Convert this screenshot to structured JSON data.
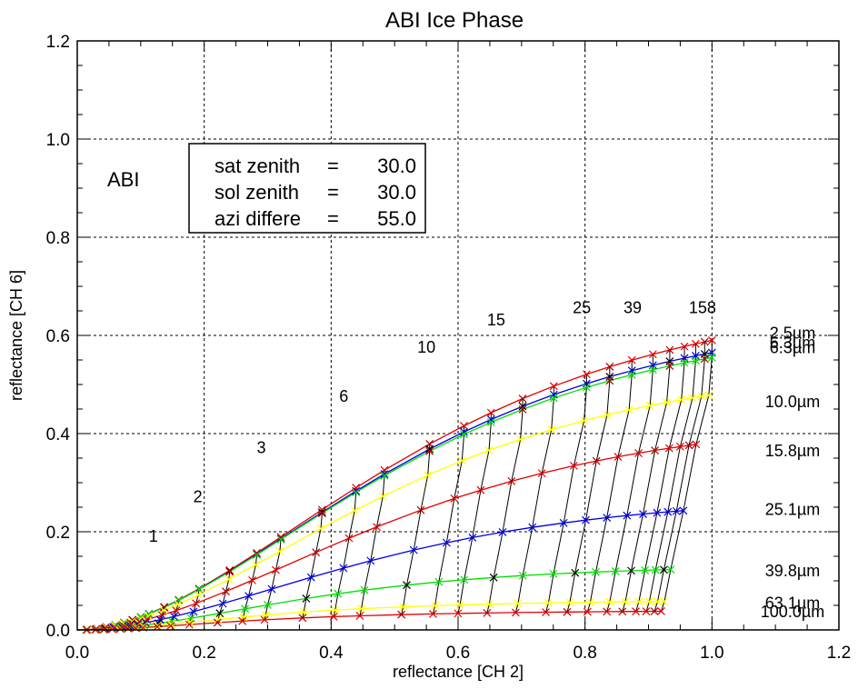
{
  "chart_data": {
    "type": "line",
    "title": "ABI Ice Phase",
    "xlabel": "reflectance [CH 2]",
    "ylabel": "reflectance [CH 6]",
    "xlim": [
      0.0,
      1.2
    ],
    "ylim": [
      0.0,
      1.2
    ],
    "x_ticks": [
      "0.0",
      "0.2",
      "0.4",
      "0.6",
      "0.8",
      "1.0",
      "1.2"
    ],
    "y_ticks": [
      "0.0",
      "0.2",
      "0.4",
      "0.6",
      "0.8",
      "1.0",
      "1.2"
    ],
    "grid": true,
    "panel_label": "ABI",
    "info_box": [
      {
        "label": "sat zenith",
        "value": "30.0"
      },
      {
        "label": "sol zenith",
        "value": "30.0"
      },
      {
        "label": "azi differe",
        "value": "55.0"
      }
    ],
    "optical_depth_labels": [
      {
        "text": "1",
        "x": 0.12,
        "y": 0.18
      },
      {
        "text": "2",
        "x": 0.19,
        "y": 0.26
      },
      {
        "text": "3",
        "x": 0.29,
        "y": 0.36
      },
      {
        "text": "6",
        "x": 0.42,
        "y": 0.465
      },
      {
        "text": "10",
        "x": 0.55,
        "y": 0.565
      },
      {
        "text": "15",
        "x": 0.66,
        "y": 0.62
      },
      {
        "text": "25",
        "x": 0.795,
        "y": 0.645
      },
      {
        "text": "39",
        "x": 0.875,
        "y": 0.645
      },
      {
        "text": "158",
        "x": 0.985,
        "y": 0.645
      }
    ],
    "effective_radius_labels": [
      {
        "text": "2.5µm",
        "color": "#e00000",
        "y": 0.605
      },
      {
        "text": "6.3µm",
        "color": "#0000e0",
        "y": 0.585
      },
      {
        "text": "6.3µm",
        "color": "#00e000",
        "y": 0.575
      },
      {
        "text": "10.0µm",
        "color": "#ffff00",
        "y": 0.465
      },
      {
        "text": "15.8µm",
        "color": "#e00000",
        "y": 0.365
      },
      {
        "text": "25.1µm",
        "color": "#0000e0",
        "y": 0.245
      },
      {
        "text": "39.8µm",
        "color": "#00e000",
        "y": 0.12
      },
      {
        "text": "63.1µm",
        "color": "#ffff00",
        "y": 0.055
      },
      {
        "text": "100.0µm",
        "color": "#e00000",
        "y": 0.037
      }
    ],
    "tau_grid": [
      0,
      0.1,
      0.2,
      0.3,
      0.4,
      0.5,
      0.6,
      0.7,
      0.8,
      1,
      1.2,
      1.5,
      2,
      2.5,
      3,
      4,
      5,
      6,
      8,
      10,
      12,
      15,
      19,
      25,
      31,
      39,
      50,
      63,
      80,
      100,
      125,
      158
    ],
    "series": [
      {
        "name": "2.5µm",
        "color": "#e00000",
        "xmax": 1.0,
        "ymax": 0.59,
        "s": 0.84
      },
      {
        "name": "6.3µm",
        "color": "#0000e0",
        "xmax": 1.0,
        "ymax": 0.565,
        "s": 0.84
      },
      {
        "name": "6.3µm",
        "color": "#00e000",
        "xmax": 1.0,
        "ymax": 0.555,
        "s": 0.84
      },
      {
        "name": "10.0µm",
        "color": "#ffff00",
        "xmax": 0.995,
        "ymax": 0.478,
        "s": 0.74
      },
      {
        "name": "15.8µm",
        "color": "#e00000",
        "xmax": 0.975,
        "ymax": 0.378,
        "s": 0.57
      },
      {
        "name": "25.1µm",
        "color": "#0000e0",
        "xmax": 0.955,
        "ymax": 0.243,
        "s": 0.42
      },
      {
        "name": "39.8µm",
        "color": "#00e000",
        "xmax": 0.935,
        "ymax": 0.123,
        "s": 0.3
      },
      {
        "name": "63.1µm",
        "color": "#ffff00",
        "xmax": 0.925,
        "ymax": 0.058,
        "s": 0.22
      },
      {
        "name": "100.0µm",
        "color": "#e00000",
        "xmax": 0.92,
        "ymax": 0.038,
        "s": 0.16
      }
    ]
  }
}
